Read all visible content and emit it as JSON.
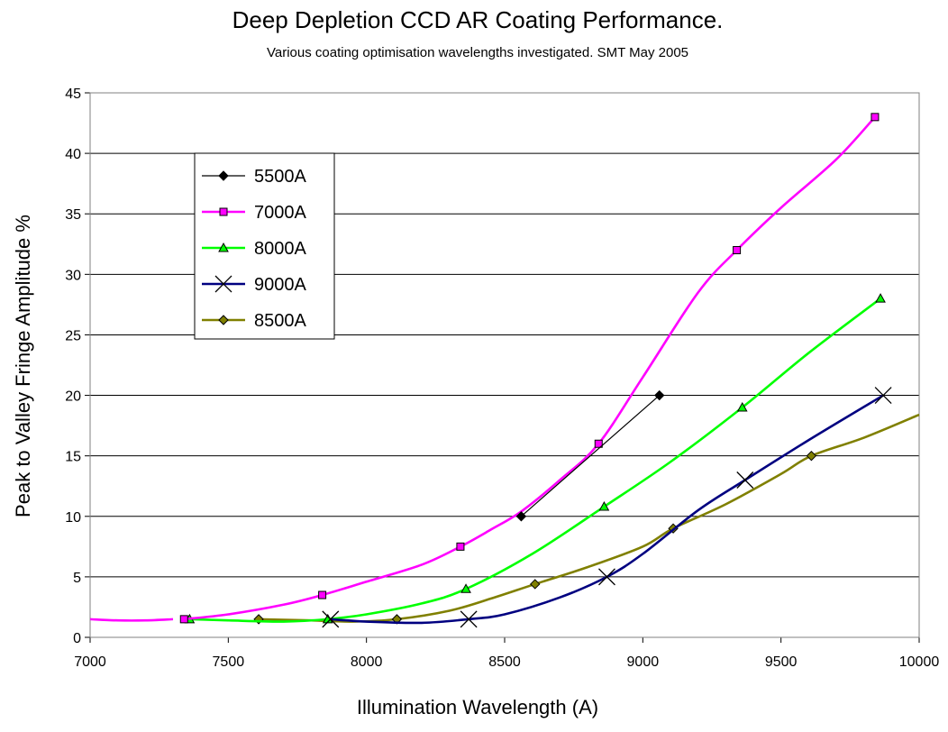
{
  "chart_data": {
    "type": "line",
    "title": "Deep Depletion CCD AR Coating Performance.",
    "subtitle": "Various coating optimisation wavelengths investigated. SMT May 2005",
    "xlabel": "Illumination Wavelength (A)",
    "ylabel": "Peak to Valley Fringe Amplitude %",
    "xlim": [
      7000,
      10000
    ],
    "ylim": [
      0,
      45
    ],
    "xticks": [
      7000,
      7500,
      8000,
      8500,
      9000,
      9500,
      10000
    ],
    "yticks": [
      0,
      5,
      10,
      15,
      20,
      25,
      30,
      35,
      40,
      45
    ],
    "grid": "horizontal",
    "legend_position": "upper-left",
    "series": [
      {
        "name": "5500A",
        "color": "#000000",
        "marker": "diamond",
        "smooth": false,
        "points": [
          [
            8560,
            10
          ],
          [
            9060,
            20
          ]
        ],
        "markers": [
          [
            8560,
            10
          ],
          [
            9060,
            20
          ]
        ]
      },
      {
        "name": "7000A",
        "color": "#ff00ff",
        "marker": "square",
        "smooth": true,
        "points": [
          [
            7340,
            1.5
          ],
          [
            7500,
            1.9
          ],
          [
            7700,
            2.7
          ],
          [
            7840,
            3.5
          ],
          [
            8000,
            4.6
          ],
          [
            8200,
            6.0
          ],
          [
            8340,
            7.5
          ],
          [
            8450,
            8.9
          ],
          [
            8560,
            10.4
          ],
          [
            8700,
            13.0
          ],
          [
            8840,
            16
          ],
          [
            9000,
            21.5
          ],
          [
            9200,
            28.5
          ],
          [
            9340,
            32
          ],
          [
            9500,
            35.5
          ],
          [
            9700,
            39.5
          ],
          [
            9840,
            43
          ]
        ],
        "markers": [
          [
            7340,
            1.5
          ],
          [
            7840,
            3.5
          ],
          [
            8340,
            7.5
          ],
          [
            8840,
            16
          ],
          [
            9340,
            32
          ],
          [
            9840,
            43
          ]
        ]
      },
      {
        "name": "8000A",
        "color": "#00ff00",
        "marker": "triangle",
        "smooth": true,
        "points": [
          [
            7360,
            1.5
          ],
          [
            7500,
            1.4
          ],
          [
            7700,
            1.3
          ],
          [
            7860,
            1.5
          ],
          [
            8000,
            1.9
          ],
          [
            8200,
            2.8
          ],
          [
            8360,
            4
          ],
          [
            8600,
            6.9
          ],
          [
            8860,
            10.8
          ],
          [
            9100,
            14.5
          ],
          [
            9360,
            19
          ],
          [
            9600,
            23.5
          ],
          [
            9860,
            28
          ]
        ],
        "markers": [
          [
            7360,
            1.5
          ],
          [
            7860,
            1.5
          ],
          [
            8360,
            4
          ],
          [
            8860,
            10.8
          ],
          [
            9360,
            19
          ],
          [
            9860,
            28
          ]
        ]
      },
      {
        "name": "9000A",
        "color": "#000080",
        "marker": "x",
        "smooth": true,
        "points": [
          [
            7870,
            1.5
          ],
          [
            8000,
            1.3
          ],
          [
            8200,
            1.2
          ],
          [
            8370,
            1.5
          ],
          [
            8500,
            1.9
          ],
          [
            8700,
            3.3
          ],
          [
            8870,
            5
          ],
          [
            9000,
            6.9
          ],
          [
            9200,
            10.5
          ],
          [
            9370,
            13
          ],
          [
            9600,
            16.3
          ],
          [
            9870,
            20
          ]
        ],
        "markers": [
          [
            7870,
            1.5
          ],
          [
            8370,
            1.5
          ],
          [
            8870,
            5
          ],
          [
            9370,
            13
          ],
          [
            9870,
            20
          ]
        ]
      },
      {
        "name": "8500A",
        "color": "#808000",
        "marker": "diamond",
        "smooth": true,
        "points": [
          [
            7610,
            1.5
          ],
          [
            7800,
            1.4
          ],
          [
            7950,
            1.3
          ],
          [
            8110,
            1.5
          ],
          [
            8300,
            2.2
          ],
          [
            8450,
            3.2
          ],
          [
            8610,
            4.4
          ],
          [
            8800,
            5.8
          ],
          [
            9000,
            7.5
          ],
          [
            9110,
            9
          ],
          [
            9300,
            11
          ],
          [
            9500,
            13.5
          ],
          [
            9610,
            15
          ],
          [
            9800,
            16.5
          ],
          [
            10000,
            18.4
          ]
        ],
        "markers": [
          [
            7610,
            1.5
          ],
          [
            8110,
            1.5
          ],
          [
            8610,
            4.4
          ],
          [
            9110,
            9
          ],
          [
            9610,
            15
          ]
        ]
      },
      {
        "name": "",
        "color": "#ff00ff",
        "marker": "none",
        "smooth": true,
        "show_in_legend": false,
        "points": [
          [
            7000,
            1.5
          ],
          [
            7100,
            1.4
          ],
          [
            7200,
            1.4
          ],
          [
            7300,
            1.5
          ]
        ],
        "markers": []
      }
    ]
  }
}
